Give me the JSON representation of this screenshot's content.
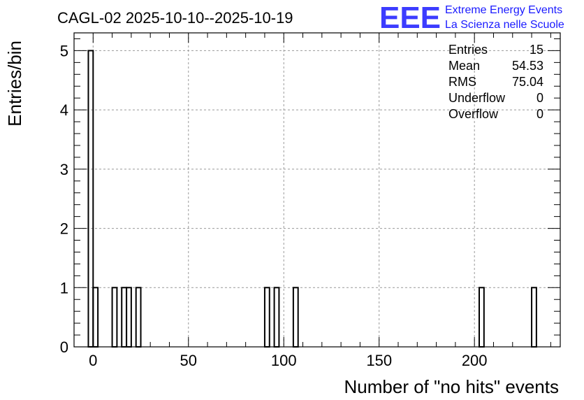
{
  "chart_data": {
    "type": "bar",
    "title": "CAGL-02 2025-10-10--2025-10-19",
    "xlabel": "Number of \"no hits\" events",
    "ylabel": "Entries/bin",
    "xlim": [
      -10,
      245
    ],
    "ylim": [
      0,
      5.3
    ],
    "bin_width": 2.5,
    "x_ticks": [
      0,
      50,
      100,
      150,
      200
    ],
    "y_ticks": [
      0,
      1,
      2,
      3,
      4,
      5
    ],
    "grid": true,
    "bins": [
      {
        "x": -1.25,
        "value": 5
      },
      {
        "x": 1.25,
        "value": 1
      },
      {
        "x": 11.25,
        "value": 1
      },
      {
        "x": 16.25,
        "value": 1
      },
      {
        "x": 18.75,
        "value": 1
      },
      {
        "x": 23.75,
        "value": 1
      },
      {
        "x": 91.25,
        "value": 1
      },
      {
        "x": 96.25,
        "value": 1
      },
      {
        "x": 106.25,
        "value": 1
      },
      {
        "x": 203.75,
        "value": 1
      },
      {
        "x": 231.25,
        "value": 1
      }
    ],
    "stats": [
      {
        "label": "Entries",
        "value": "15"
      },
      {
        "label": "Mean",
        "value": "54.53"
      },
      {
        "label": "RMS",
        "value": "75.04"
      },
      {
        "label": "Underflow",
        "value": "0"
      },
      {
        "label": "Overflow",
        "value": "0"
      }
    ]
  },
  "logo": {
    "mark": "EEE",
    "line1": "Extreme Energy Events",
    "line2": "La Scienza nelle Scuole",
    "color": "#1a1aff"
  }
}
